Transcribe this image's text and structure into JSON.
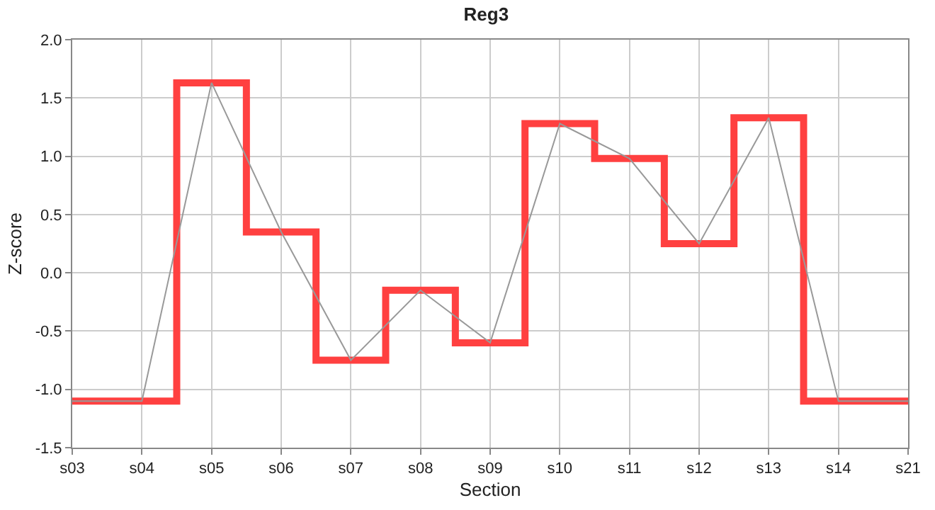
{
  "chart_data": {
    "type": "step",
    "title": "Reg3",
    "xlabel": "Section",
    "ylabel": "Z-score",
    "categories": [
      "s03",
      "s04",
      "s05",
      "s06",
      "s07",
      "s08",
      "s09",
      "s10",
      "s11",
      "s12",
      "s13",
      "s14",
      "s21"
    ],
    "series": [
      {
        "color": "#ff4040",
        "values": [
          -1.1,
          -1.1,
          1.63,
          0.35,
          -0.75,
          -0.15,
          -0.6,
          1.28,
          0.98,
          0.25,
          1.33,
          -1.1,
          -1.1
        ]
      },
      {
        "type": "line",
        "color": "#999999",
        "values": [
          -1.1,
          -1.1,
          1.63,
          0.35,
          -0.75,
          -0.15,
          -0.6,
          1.28,
          0.98,
          0.25,
          1.33,
          -1.1,
          -1.1
        ]
      }
    ],
    "ylim": [
      -1.5,
      2.0
    ],
    "yticks": [
      -1.5,
      {
        "value": -1,
        "label": "-1.0"
      },
      -0.5,
      {
        "value": 0,
        "label": "0.0"
      },
      0.5,
      {
        "value": 1,
        "label": "1.0"
      },
      1.5,
      {
        "value": 2,
        "label": "2.0"
      }
    ],
    "grid": true,
    "legend": false
  }
}
